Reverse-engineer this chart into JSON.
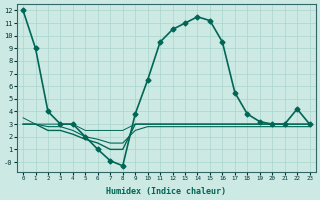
{
  "xlabel": "Humidex (Indice chaleur)",
  "ylabel": "",
  "xlim": [
    -0.5,
    23.5
  ],
  "ylim": [
    -0.8,
    12.5
  ],
  "yticks": [
    0,
    1,
    2,
    3,
    4,
    5,
    6,
    7,
    8,
    9,
    10,
    11,
    12
  ],
  "xticks": [
    0,
    1,
    2,
    3,
    4,
    5,
    6,
    7,
    8,
    9,
    10,
    11,
    12,
    13,
    14,
    15,
    16,
    17,
    18,
    19,
    20,
    21,
    22,
    23
  ],
  "background_color": "#cce9e4",
  "grid_color": "#aad4ce",
  "line_color": "#006655",
  "series": [
    {
      "x": [
        0,
        1,
        2,
        3,
        4,
        5,
        6,
        7,
        8,
        9,
        10,
        11,
        12,
        13,
        14,
        15,
        16,
        17,
        18,
        19,
        20,
        21,
        22,
        23
      ],
      "y": [
        12,
        9,
        4,
        3,
        3,
        2,
        1,
        0.1,
        -0.3,
        3.8,
        6.5,
        9.5,
        10.5,
        11.0,
        11.5,
        11.2,
        9.5,
        5.5,
        3.8,
        3.2,
        3.0,
        3.0,
        4.2,
        3.0
      ],
      "marker": "D",
      "markersize": 2.5,
      "linewidth": 1.2
    },
    {
      "x": [
        0,
        1,
        2,
        3,
        4,
        5,
        6,
        7,
        8,
        9,
        10,
        11,
        12,
        13,
        14,
        15,
        16,
        17,
        18,
        19,
        20,
        21,
        22,
        23
      ],
      "y": [
        3.0,
        3.0,
        2.5,
        2.5,
        2.2,
        1.8,
        1.5,
        1.0,
        1.0,
        3.0,
        3.0,
        3.0,
        3.0,
        3.0,
        3.0,
        3.0,
        3.0,
        3.0,
        3.0,
        3.0,
        3.0,
        3.0,
        3.0,
        3.0
      ],
      "marker": null,
      "markersize": 0,
      "linewidth": 1.0
    },
    {
      "x": [
        0,
        1,
        2,
        3,
        4,
        5,
        6,
        7,
        8,
        9,
        10,
        11,
        12,
        13,
        14,
        15,
        16,
        17,
        18,
        19,
        20,
        21,
        22,
        23
      ],
      "y": [
        3.0,
        3.0,
        2.8,
        2.8,
        2.5,
        2.0,
        1.8,
        1.5,
        1.5,
        2.5,
        2.8,
        2.8,
        2.8,
        2.8,
        2.8,
        2.8,
        2.8,
        2.8,
        2.8,
        2.8,
        2.8,
        2.8,
        2.8,
        2.8
      ],
      "marker": null,
      "markersize": 0,
      "linewidth": 0.8
    },
    {
      "x": [
        0,
        1,
        2,
        3,
        4,
        5,
        6,
        7,
        8,
        9,
        10,
        11,
        12,
        13,
        14,
        15,
        16,
        17,
        18,
        19,
        20,
        21,
        22,
        23
      ],
      "y": [
        3.5,
        3.0,
        3.0,
        3.0,
        3.0,
        2.5,
        2.5,
        2.5,
        2.5,
        3.0,
        3.0,
        3.0,
        3.0,
        3.0,
        3.0,
        3.0,
        3.0,
        3.0,
        3.0,
        3.0,
        3.0,
        3.0,
        3.0,
        3.0
      ],
      "marker": null,
      "markersize": 0,
      "linewidth": 0.7
    }
  ],
  "ytick_labels": [
    "-0",
    "1",
    "2",
    "3",
    "4",
    "5",
    "6",
    "7",
    "8",
    "9",
    "10",
    "11",
    "12"
  ]
}
